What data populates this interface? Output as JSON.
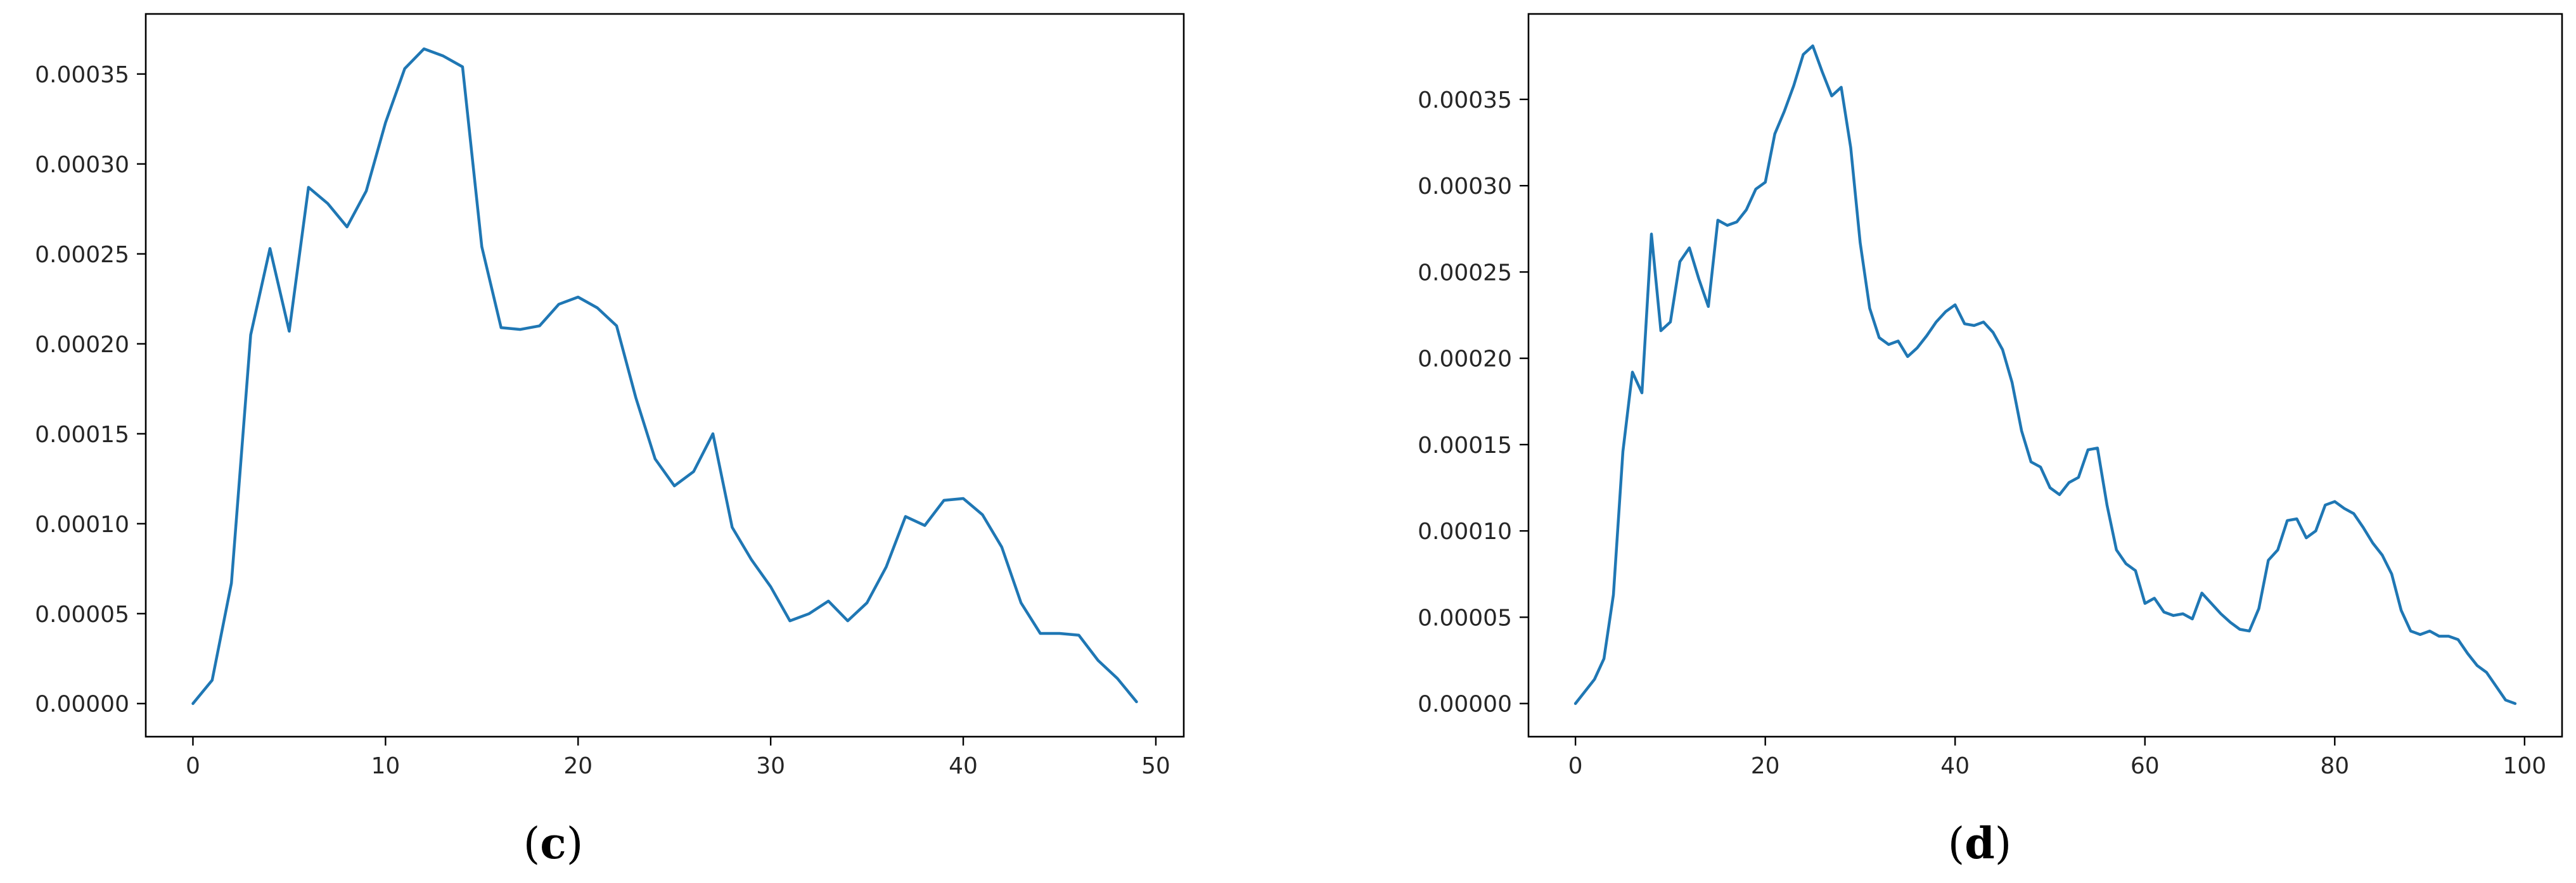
{
  "chart_data": [
    {
      "type": "line",
      "panel_label": "c",
      "color": "#1f77b4",
      "xlim": [
        -2.45,
        51.45
      ],
      "ylim": [
        -1.84e-05,
        0.0003834
      ],
      "x_ticks": [
        0,
        10,
        20,
        30,
        40,
        50
      ],
      "x_tick_labels": [
        "0",
        "10",
        "20",
        "30",
        "40",
        "50"
      ],
      "y_ticks": [
        0,
        5e-05,
        0.0001,
        0.00015,
        0.0002,
        0.00025,
        0.0003,
        0.00035
      ],
      "y_tick_labels": [
        "0.00000",
        "0.00005",
        "0.00010",
        "0.00015",
        "0.00020",
        "0.00025",
        "0.00030",
        "0.00035"
      ],
      "x": [
        0,
        1,
        2,
        3,
        4,
        5,
        6,
        7,
        8,
        9,
        10,
        11,
        12,
        13,
        14,
        15,
        16,
        17,
        18,
        19,
        20,
        21,
        22,
        23,
        24,
        25,
        26,
        27,
        28,
        29,
        30,
        31,
        32,
        33,
        34,
        35,
        36,
        37,
        38,
        39,
        40,
        41,
        42,
        43,
        44,
        45,
        46,
        47,
        48,
        49
      ],
      "y": [
        0.0,
        1.3e-05,
        6.7e-05,
        0.000205,
        0.000253,
        0.000207,
        0.000287,
        0.000278,
        0.000265,
        0.000285,
        0.000323,
        0.000353,
        0.000364,
        0.00036,
        0.000354,
        0.000254,
        0.000209,
        0.000208,
        0.00021,
        0.000222,
        0.000226,
        0.00022,
        0.00021,
        0.00017,
        0.000136,
        0.000121,
        0.000129,
        0.00015,
        9.8e-05,
        8e-05,
        6.5e-05,
        4.6e-05,
        5e-05,
        5.7e-05,
        4.6e-05,
        5.6e-05,
        7.6e-05,
        0.000104,
        9.9e-05,
        0.000113,
        0.000114,
        0.000105,
        8.7e-05,
        5.6e-05,
        3.9e-05,
        3.9e-05,
        3.8e-05,
        2.4e-05,
        1.4e-05,
        1e-06
      ]
    },
    {
      "type": "line",
      "panel_label": "d",
      "color": "#1f77b4",
      "xlim": [
        -4.95,
        103.95
      ],
      "ylim": [
        -1.92e-05,
        0.0003995
      ],
      "x_ticks": [
        0,
        20,
        40,
        60,
        80,
        100
      ],
      "x_tick_labels": [
        "0",
        "20",
        "40",
        "60",
        "80",
        "100"
      ],
      "y_ticks": [
        0,
        5e-05,
        0.0001,
        0.00015,
        0.0002,
        0.00025,
        0.0003,
        0.00035
      ],
      "y_tick_labels": [
        "0.00000",
        "0.00005",
        "0.00010",
        "0.00015",
        "0.00020",
        "0.00025",
        "0.00030",
        "0.00035"
      ],
      "x": [
        0,
        1,
        2,
        3,
        4,
        5,
        6,
        7,
        8,
        9,
        10,
        11,
        12,
        13,
        14,
        15,
        16,
        17,
        18,
        19,
        20,
        21,
        22,
        23,
        24,
        25,
        26,
        27,
        28,
        29,
        30,
        31,
        32,
        33,
        34,
        35,
        36,
        37,
        38,
        39,
        40,
        41,
        42,
        43,
        44,
        45,
        46,
        47,
        48,
        49,
        50,
        51,
        52,
        53,
        54,
        55,
        56,
        57,
        58,
        59,
        60,
        61,
        62,
        63,
        64,
        65,
        66,
        67,
        68,
        69,
        70,
        71,
        72,
        73,
        74,
        75,
        76,
        77,
        78,
        79,
        80,
        81,
        82,
        83,
        84,
        85,
        86,
        87,
        88,
        89,
        90,
        91,
        92,
        93,
        94,
        95,
        96,
        97,
        98,
        99
      ],
      "y": [
        0.0,
        7e-06,
        1.4e-05,
        2.6e-05,
        6.3e-05,
        0.000146,
        0.000192,
        0.00018,
        0.000272,
        0.000216,
        0.000221,
        0.000256,
        0.000264,
        0.000246,
        0.00023,
        0.00028,
        0.000277,
        0.000279,
        0.000286,
        0.000298,
        0.000302,
        0.00033,
        0.000343,
        0.000358,
        0.000376,
        0.000381,
        0.000366,
        0.000352,
        0.000357,
        0.000322,
        0.000267,
        0.000229,
        0.000212,
        0.000208,
        0.00021,
        0.000201,
        0.000206,
        0.000213,
        0.000221,
        0.000227,
        0.000231,
        0.00022,
        0.000219,
        0.000221,
        0.000215,
        0.000205,
        0.000186,
        0.000158,
        0.00014,
        0.000137,
        0.000125,
        0.000121,
        0.000128,
        0.000131,
        0.000147,
        0.000148,
        0.000115,
        8.9e-05,
        8.1e-05,
        7.7e-05,
        5.8e-05,
        6.1e-05,
        5.3e-05,
        5.1e-05,
        5.2e-05,
        4.9e-05,
        6.4e-05,
        5.8e-05,
        5.2e-05,
        4.7e-05,
        4.3e-05,
        4.2e-05,
        5.5e-05,
        8.3e-05,
        8.9e-05,
        0.000106,
        0.000107,
        9.6e-05,
        0.0001,
        0.000115,
        0.000117,
        0.000113,
        0.00011,
        0.000102,
        9.3e-05,
        8.6e-05,
        7.5e-05,
        5.4e-05,
        4.2e-05,
        4e-05,
        4.2e-05,
        3.9e-05,
        3.9e-05,
        3.7e-05,
        2.9e-05,
        2.2e-05,
        1.8e-05,
        1e-05,
        2e-06,
        0.0
      ]
    }
  ]
}
